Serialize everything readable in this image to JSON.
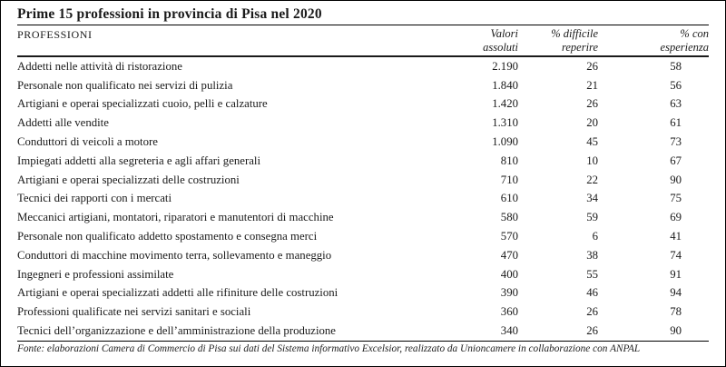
{
  "title": "Prime 15 professioni in provincia di Pisa nel 2020",
  "table": {
    "header": {
      "professioni": "PROFESSIONI",
      "valori": {
        "line1": "Valori",
        "line2": "assoluti"
      },
      "difficile": {
        "line1": "% difficile",
        "line2": "reperire"
      },
      "esperienza": {
        "line1": "% con",
        "line2": "esperienza"
      }
    },
    "rows": [
      {
        "profession": "Addetti nelle attività di ristorazione",
        "valori_assoluti": "2.190",
        "pct_difficile_reperire": "26",
        "pct_con_esperienza": "58"
      },
      {
        "profession": "Personale non qualificato nei servizi di pulizia",
        "valori_assoluti": "1.840",
        "pct_difficile_reperire": "21",
        "pct_con_esperienza": "56"
      },
      {
        "profession": "Artigiani e operai specializzati cuoio, pelli e calzature",
        "valori_assoluti": "1.420",
        "pct_difficile_reperire": "26",
        "pct_con_esperienza": "63"
      },
      {
        "profession": "Addetti alle vendite",
        "valori_assoluti": "1.310",
        "pct_difficile_reperire": "20",
        "pct_con_esperienza": "61"
      },
      {
        "profession": "Conduttori di veicoli a motore",
        "valori_assoluti": "1.090",
        "pct_difficile_reperire": "45",
        "pct_con_esperienza": "73"
      },
      {
        "profession": "Impiegati addetti alla segreteria e agli affari generali",
        "valori_assoluti": "810",
        "pct_difficile_reperire": "10",
        "pct_con_esperienza": "67"
      },
      {
        "profession": "Artigiani e operai specializzati delle costruzioni",
        "valori_assoluti": "710",
        "pct_difficile_reperire": "22",
        "pct_con_esperienza": "90"
      },
      {
        "profession": "Tecnici dei rapporti con i mercati",
        "valori_assoluti": "610",
        "pct_difficile_reperire": "34",
        "pct_con_esperienza": "75"
      },
      {
        "profession": "Meccanici artigiani, montatori, riparatori e manutentori di macchine",
        "valori_assoluti": "580",
        "pct_difficile_reperire": "59",
        "pct_con_esperienza": "69"
      },
      {
        "profession": "Personale non qualificato addetto spostamento e consegna merci",
        "valori_assoluti": "570",
        "pct_difficile_reperire": "6",
        "pct_con_esperienza": "41"
      },
      {
        "profession": "Conduttori di macchine movimento terra, sollevamento e maneggio",
        "valori_assoluti": "470",
        "pct_difficile_reperire": "38",
        "pct_con_esperienza": "74"
      },
      {
        "profession": "Ingegneri e professioni assimilate",
        "valori_assoluti": "400",
        "pct_difficile_reperire": "55",
        "pct_con_esperienza": "91"
      },
      {
        "profession": "Artigiani e operai specializzati addetti alle rifiniture delle costruzioni",
        "valori_assoluti": "390",
        "pct_difficile_reperire": "46",
        "pct_con_esperienza": "94"
      },
      {
        "profession": "Professioni qualificate nei servizi sanitari e sociali",
        "valori_assoluti": "360",
        "pct_difficile_reperire": "26",
        "pct_con_esperienza": "78"
      },
      {
        "profession": "Tecnici dell’organizzazione e dell’amministrazione della produzione",
        "valori_assoluti": "340",
        "pct_difficile_reperire": "26",
        "pct_con_esperienza": "90"
      }
    ]
  },
  "source_note": "Fonte: elaborazioni Camera di Commercio di Pisa sui dati del Sistema informativo Excelsior, realizzato da Unioncamere in collaborazione con ANPAL"
}
